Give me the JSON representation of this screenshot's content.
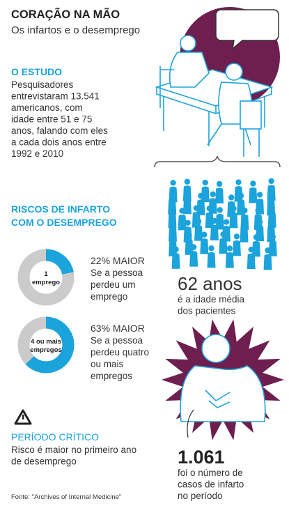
{
  "header": {
    "title": "CORAÇÃO NA MÃO",
    "subtitle": "Os infartos e o desemprego"
  },
  "study": {
    "heading": "O ESTUDO",
    "lines": [
      "Pesquisadores",
      "entrevistaram 13.541",
      "americanos, com",
      "idade entre 51 e 75",
      "anos, falando com eles",
      "a cada dois anos entre",
      "1992 e 2010"
    ]
  },
  "risks": {
    "heading_lines": [
      "RISCOS DE INFARTO",
      "COM O DESEMPREGO"
    ],
    "items": [
      {
        "donut_label_lines": [
          "1",
          "emprego"
        ],
        "percent": 22,
        "headline": "22% MAIOR",
        "lines": [
          "Se a pessoa",
          "perdeu um",
          "emprego"
        ]
      },
      {
        "donut_label_lines": [
          "4 ou mais",
          "empregos"
        ],
        "percent": 63,
        "headline": "63% MAIOR",
        "lines": [
          "Se a pessoa",
          "perdeu quatro",
          "ou mais",
          "empregos"
        ]
      }
    ]
  },
  "age": {
    "value": "62 anos",
    "lines": [
      "é a idade média",
      "dos pacientes"
    ]
  },
  "critical": {
    "heading": "PERÍODO CRÍTICO",
    "lines": [
      "Risco é maior no primeiro ano",
      "de desemprego"
    ]
  },
  "cases": {
    "value": "1.061",
    "lines": [
      "foi o número de",
      "casos de infarto",
      "no período"
    ]
  },
  "source": "Fonte: \"Archives of Internal Medicine\""
}
